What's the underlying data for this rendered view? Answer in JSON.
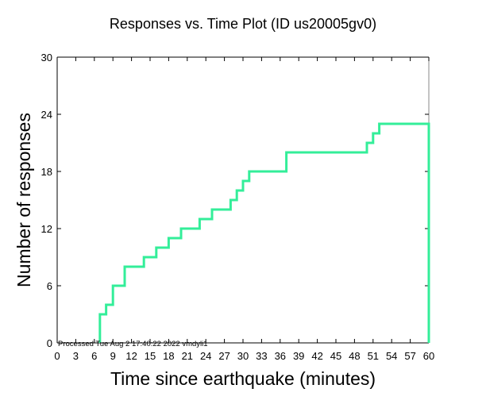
{
  "chart_data": {
    "type": "line",
    "step": true,
    "title": "Responses vs. Time Plot (ID us20005gv0)",
    "xlabel": "Time since earthquake (minutes)",
    "ylabel": "Number of responses",
    "xlim": [
      0,
      60
    ],
    "ylim": [
      0,
      30
    ],
    "xticks": [
      0,
      3,
      6,
      9,
      12,
      15,
      18,
      21,
      24,
      27,
      30,
      33,
      36,
      39,
      42,
      45,
      48,
      51,
      54,
      57,
      60
    ],
    "yticks": [
      0,
      6,
      12,
      18,
      24,
      30
    ],
    "grid": false,
    "line_color": "#33ee99",
    "series": [
      {
        "name": "responses",
        "x": [
          6.9,
          6.9,
          7.9,
          9.0,
          10.9,
          14.0,
          16.0,
          18.0,
          20.0,
          23.0,
          25.0,
          28.0,
          29.0,
          30.0,
          31.0,
          37.0,
          50.0,
          51.0,
          52.0,
          60.0,
          60.0
        ],
        "y": [
          0,
          3,
          4,
          6,
          8,
          9,
          10,
          11,
          12,
          13,
          14,
          15,
          16,
          17,
          18,
          20,
          21,
          22,
          23,
          23,
          0
        ]
      }
    ],
    "annotation": "Processed Tue Aug  2 17:40:22 2022 vmdyli1"
  }
}
